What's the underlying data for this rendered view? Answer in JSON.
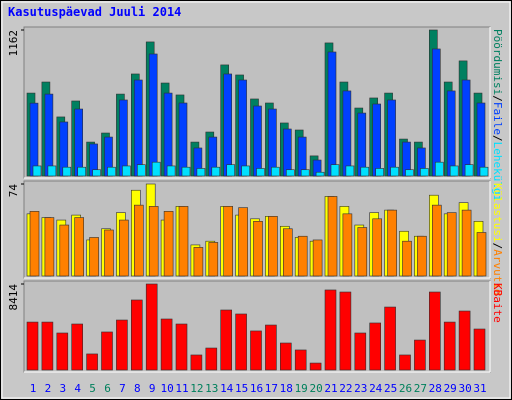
{
  "chart_data": [
    {
      "type": "bar",
      "title": "Kasutuspäevad Juuli 2014",
      "ylim": [
        0,
        1162
      ],
      "yticks": [
        1162
      ],
      "legend_separator": "/",
      "series": [
        {
          "name": "Pöördumisi",
          "color": "#008060",
          "values": [
            660,
            748,
            470,
            597,
            270,
            342,
            652,
            812,
            1067,
            740,
            645,
            270,
            350,
            884,
            804,
            613,
            581,
            422,
            366,
            160,
            1059,
            748,
            541,
            621,
            660,
            294,
            270,
            1162,
            748,
            916,
            660
          ]
        },
        {
          "name": "Faile",
          "color": "#0040ff",
          "values": [
            580,
            652,
            430,
            533,
            255,
            310,
            605,
            764,
            971,
            660,
            581,
            223,
            310,
            812,
            764,
            557,
            533,
            374,
            310,
            127,
            987,
            677,
            501,
            573,
            605,
            270,
            223,
            1011,
            677,
            764,
            581
          ]
        },
        {
          "name": "Lehekülgi",
          "color": "#00e0ff",
          "values": [
            80,
            80,
            70,
            70,
            50,
            70,
            80,
            90,
            110,
            80,
            70,
            60,
            70,
            90,
            80,
            60,
            70,
            50,
            50,
            30,
            90,
            80,
            70,
            60,
            70,
            50,
            60,
            110,
            80,
            90,
            70
          ]
        }
      ]
    },
    {
      "type": "bar",
      "ylim": [
        0,
        74
      ],
      "yticks": [
        74
      ],
      "legend_separator": "/",
      "series": [
        {
          "name": "Külastusi",
          "color": "#ffff00",
          "values": [
            50,
            47,
            45,
            49,
            29,
            38,
            51,
            69,
            74,
            45,
            56,
            25,
            28,
            56,
            49,
            46,
            48,
            40,
            31,
            28,
            64,
            56,
            41,
            51,
            53,
            36,
            32,
            65,
            50,
            59,
            44
          ]
        },
        {
          "name": "Arvutid",
          "color": "#ff8000",
          "values": [
            52,
            47,
            41,
            47,
            31,
            37,
            45,
            57,
            56,
            52,
            56,
            23,
            27,
            56,
            55,
            44,
            48,
            38,
            32,
            29,
            64,
            50,
            39,
            46,
            53,
            28,
            32,
            57,
            51,
            53,
            35
          ]
        }
      ]
    },
    {
      "type": "bar",
      "ylim": [
        0,
        8414
      ],
      "yticks": [
        8414
      ],
      "categories": [
        "1",
        "2",
        "3",
        "4",
        "5",
        "6",
        "7",
        "8",
        "9",
        "10",
        "11",
        "12",
        "13",
        "14",
        "15",
        "16",
        "17",
        "18",
        "19",
        "20",
        "21",
        "22",
        "23",
        "24",
        "25",
        "26",
        "27",
        "28",
        "29",
        "30",
        "31"
      ],
      "label_colors": [
        "#0000ff",
        "#0000ff",
        "#0000ff",
        "#0000ff",
        "#00805c",
        "#00805c",
        "#0000ff",
        "#0000ff",
        "#0000ff",
        "#0000ff",
        "#0000ff",
        "#00805c",
        "#00805c",
        "#0000ff",
        "#0000ff",
        "#0000ff",
        "#0000ff",
        "#0000ff",
        "#00805c",
        "#00805c",
        "#0000ff",
        "#0000ff",
        "#0000ff",
        "#0000ff",
        "#0000ff",
        "#00805c",
        "#00805c",
        "#0000ff",
        "#0000ff",
        "#0000ff",
        "#0000ff"
      ],
      "series": [
        {
          "name": "KBaite",
          "color": "#ff0000",
          "values": [
            4690,
            4690,
            3620,
            4500,
            1570,
            3720,
            4890,
            6850,
            8414,
            4990,
            4500,
            1470,
            2150,
            5870,
            5480,
            3820,
            4400,
            2640,
            1960,
            680,
            7830,
            7630,
            3620,
            4600,
            6160,
            1470,
            2930,
            7630,
            4690,
            5770,
            4010
          ]
        }
      ]
    }
  ]
}
